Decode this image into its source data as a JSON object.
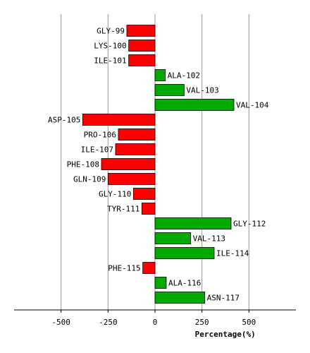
{
  "chart_data": {
    "type": "bar",
    "orientation": "horizontal",
    "xlabel": "Percentage(%)",
    "xlim": [
      -750,
      750
    ],
    "xticks": [
      -500,
      -250,
      0,
      250,
      500
    ],
    "grid": "vertical",
    "colors": {
      "positive": "#00aa00",
      "negative": "#ff0000"
    },
    "categories": [
      "GLY-99",
      "LYS-100",
      "ILE-101",
      "ALA-102",
      "VAL-103",
      "VAL-104",
      "ASP-105",
      "PRO-106",
      "ILE-107",
      "PHE-108",
      "GLN-109",
      "GLY-110",
      "TYR-111",
      "GLY-112",
      "VAL-113",
      "ILE-114",
      "PHE-115",
      "ALA-116",
      "ASN-117"
    ],
    "values": [
      -150,
      -140,
      -140,
      55,
      155,
      420,
      -385,
      -195,
      -210,
      -285,
      -250,
      -115,
      -70,
      405,
      190,
      315,
      -65,
      60,
      265
    ]
  }
}
